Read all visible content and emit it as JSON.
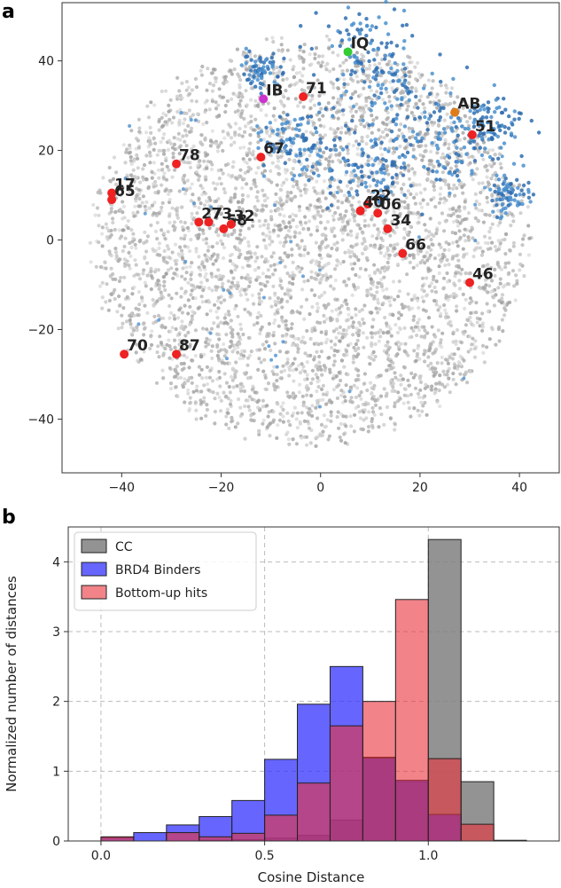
{
  "panels": {
    "a": "a",
    "b": "b"
  },
  "chart_data": [
    {
      "type": "scatter",
      "panel": "a",
      "xlim": [
        -52,
        48
      ],
      "ylim": [
        -52,
        53
      ],
      "xticks": [
        -40,
        -20,
        0,
        20,
        40
      ],
      "yticks": [
        -40,
        -20,
        0,
        20,
        40
      ],
      "xtick_labels": [
        "−40",
        "−20",
        "0",
        "20",
        "40"
      ],
      "ytick_labels": [
        "−40",
        "−20",
        "0",
        "20",
        "40"
      ],
      "background_color": "#b4b4b4",
      "highlight_color": "#2f74b5",
      "grid": false,
      "labeled_points": [
        {
          "label": "IQ",
          "x": 5.5,
          "y": 42,
          "color": "#33cc33"
        },
        {
          "label": "IB",
          "x": -11.5,
          "y": 31.5,
          "color": "#cc33cc"
        },
        {
          "label": "AB",
          "x": 27,
          "y": 28.5,
          "color": "#e07b1a"
        },
        {
          "label": "71",
          "x": -3.5,
          "y": 32,
          "color": "#ee2222"
        },
        {
          "label": "51",
          "x": 30.5,
          "y": 23.5,
          "color": "#ee2222"
        },
        {
          "label": "78",
          "x": -29,
          "y": 17,
          "color": "#ee2222"
        },
        {
          "label": "67",
          "x": -12,
          "y": 18.5,
          "color": "#ee2222"
        },
        {
          "label": "17",
          "x": -42,
          "y": 10.5,
          "color": "#ee2222"
        },
        {
          "label": "65",
          "x": -42,
          "y": 9,
          "color": "#ee2222"
        },
        {
          "label": "27",
          "x": -24.5,
          "y": 4,
          "color": "#ee2222"
        },
        {
          "label": "73",
          "x": -22.5,
          "y": 4,
          "color": "#ee2222"
        },
        {
          "label": "58",
          "x": -19.5,
          "y": 2.5,
          "color": "#ee2222"
        },
        {
          "label": "32",
          "x": -18,
          "y": 3.5,
          "color": "#ee2222"
        },
        {
          "label": "22",
          "x": 9.5,
          "y": 8,
          "color": "#ee2222"
        },
        {
          "label": "40",
          "x": 8,
          "y": 6.5,
          "color": "#ee2222"
        },
        {
          "label": "06",
          "x": 11.5,
          "y": 6,
          "color": "#ee2222"
        },
        {
          "label": "34",
          "x": 13.5,
          "y": 2.5,
          "color": "#ee2222"
        },
        {
          "label": "66",
          "x": 16.5,
          "y": -3,
          "color": "#ee2222"
        },
        {
          "label": "46",
          "x": 30,
          "y": -9.5,
          "color": "#ee2222"
        },
        {
          "label": "70",
          "x": -39.5,
          "y": -25.5,
          "color": "#ee2222"
        },
        {
          "label": "87",
          "x": -29,
          "y": -25.5,
          "color": "#ee2222"
        }
      ]
    },
    {
      "type": "bar",
      "panel": "b",
      "xlabel": "Cosine Distance",
      "ylabel": "Normalized number of distances",
      "xlim": [
        -0.1,
        1.4
      ],
      "ylim": [
        0,
        4.5
      ],
      "xticks": [
        0.0,
        0.5,
        1.0
      ],
      "xtick_labels": [
        "0.0",
        "0.5",
        "1.0"
      ],
      "yticks": [
        0,
        1,
        2,
        3,
        4
      ],
      "ytick_labels": [
        "0",
        "1",
        "2",
        "3",
        "4"
      ],
      "grid": true,
      "legend_position": "top-left",
      "series": [
        {
          "name": "CC",
          "color": "#808080",
          "opacity": 0.85,
          "bins": [
            [
              0.0,
              0.1
            ],
            [
              0.1,
              0.2
            ],
            [
              0.2,
              0.3
            ],
            [
              0.3,
              0.4
            ],
            [
              0.4,
              0.5
            ],
            [
              0.5,
              0.6
            ],
            [
              0.6,
              0.7
            ],
            [
              0.7,
              0.8
            ],
            [
              0.8,
              0.9
            ],
            [
              0.9,
              1.0
            ],
            [
              1.0,
              1.1
            ],
            [
              1.1,
              1.2
            ],
            [
              1.2,
              1.3
            ]
          ],
          "values": [
            0.0,
            0.0,
            0.0,
            0.01,
            0.02,
            0.04,
            0.08,
            0.3,
            1.2,
            0.85,
            4.32,
            0.85,
            0.01
          ]
        },
        {
          "name": "BRD4 Binders",
          "color": "#3333ff",
          "opacity": 0.75,
          "bins": [
            [
              0.0,
              0.1
            ],
            [
              0.1,
              0.2
            ],
            [
              0.2,
              0.3
            ],
            [
              0.3,
              0.4
            ],
            [
              0.4,
              0.5
            ],
            [
              0.5,
              0.6
            ],
            [
              0.6,
              0.7
            ],
            [
              0.7,
              0.8
            ],
            [
              0.8,
              0.9
            ],
            [
              0.9,
              1.0
            ],
            [
              1.0,
              1.1
            ]
          ],
          "values": [
            0.05,
            0.12,
            0.23,
            0.35,
            0.58,
            1.17,
            1.96,
            2.5,
            1.19,
            0.87,
            0.38
          ]
        },
        {
          "name": "Bottom-up hits",
          "color": "#e8303a",
          "opacity": 0.6,
          "bins": [
            [
              0.0,
              0.1
            ],
            [
              0.1,
              0.2
            ],
            [
              0.2,
              0.3
            ],
            [
              0.3,
              0.4
            ],
            [
              0.4,
              0.5
            ],
            [
              0.5,
              0.6
            ],
            [
              0.6,
              0.7
            ],
            [
              0.7,
              0.8
            ],
            [
              0.8,
              0.9
            ],
            [
              0.9,
              1.0
            ],
            [
              1.0,
              1.1
            ],
            [
              1.1,
              1.2
            ]
          ],
          "values": [
            0.06,
            0.0,
            0.12,
            0.06,
            0.11,
            0.37,
            0.83,
            1.65,
            2.0,
            3.46,
            1.18,
            0.24
          ]
        }
      ]
    }
  ]
}
